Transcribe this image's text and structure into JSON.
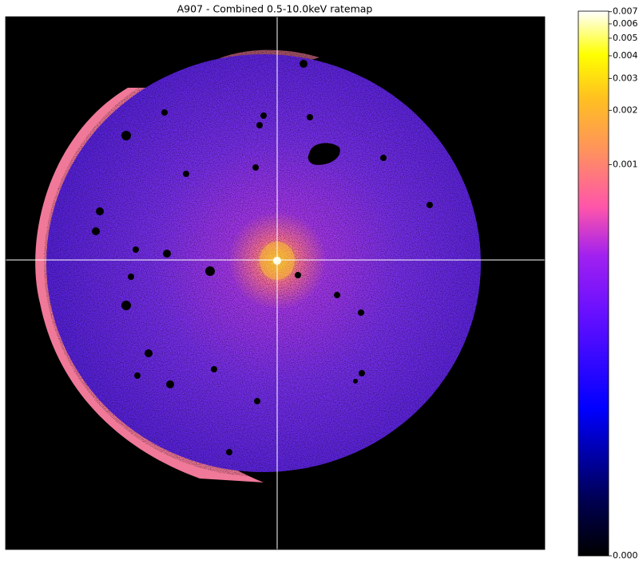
{
  "chart_data": {
    "type": "image",
    "title": "A907 - Combined 0.5-10.0keV ratemap",
    "colorbar": {
      "ylim": [
        0,
        0.00705
      ],
      "scale": "log",
      "yticks": [
        {
          "value": 0,
          "label": "0.000"
        },
        0.001,
        0.002,
        0.003,
        0.004,
        0.005,
        0.006,
        0.007
      ]
    }
  }
}
